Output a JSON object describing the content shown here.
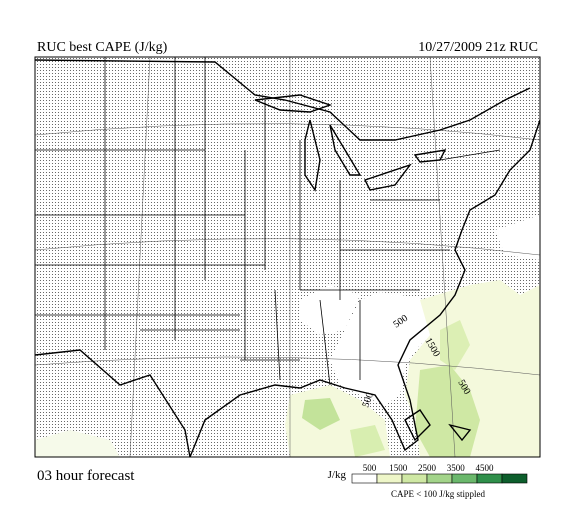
{
  "header": {
    "title": "RUC best CAPE (J/kg)",
    "run": "10/27/2009  21z  RUC"
  },
  "footer": {
    "forecast": "03 hour forecast",
    "stipple_note": "CAPE < 100 J/kg stippled"
  },
  "legend": {
    "unit": "J/kg",
    "ticks": [
      500,
      1500,
      2500,
      3500,
      4500
    ],
    "colors": [
      "#ffffff",
      "#eef6c8",
      "#cfe8a4",
      "#a3d48a",
      "#6bb86c",
      "#2f8f4a",
      "#0d5e2c"
    ]
  },
  "contour_labels": [
    500,
    1500,
    500,
    500
  ]
}
